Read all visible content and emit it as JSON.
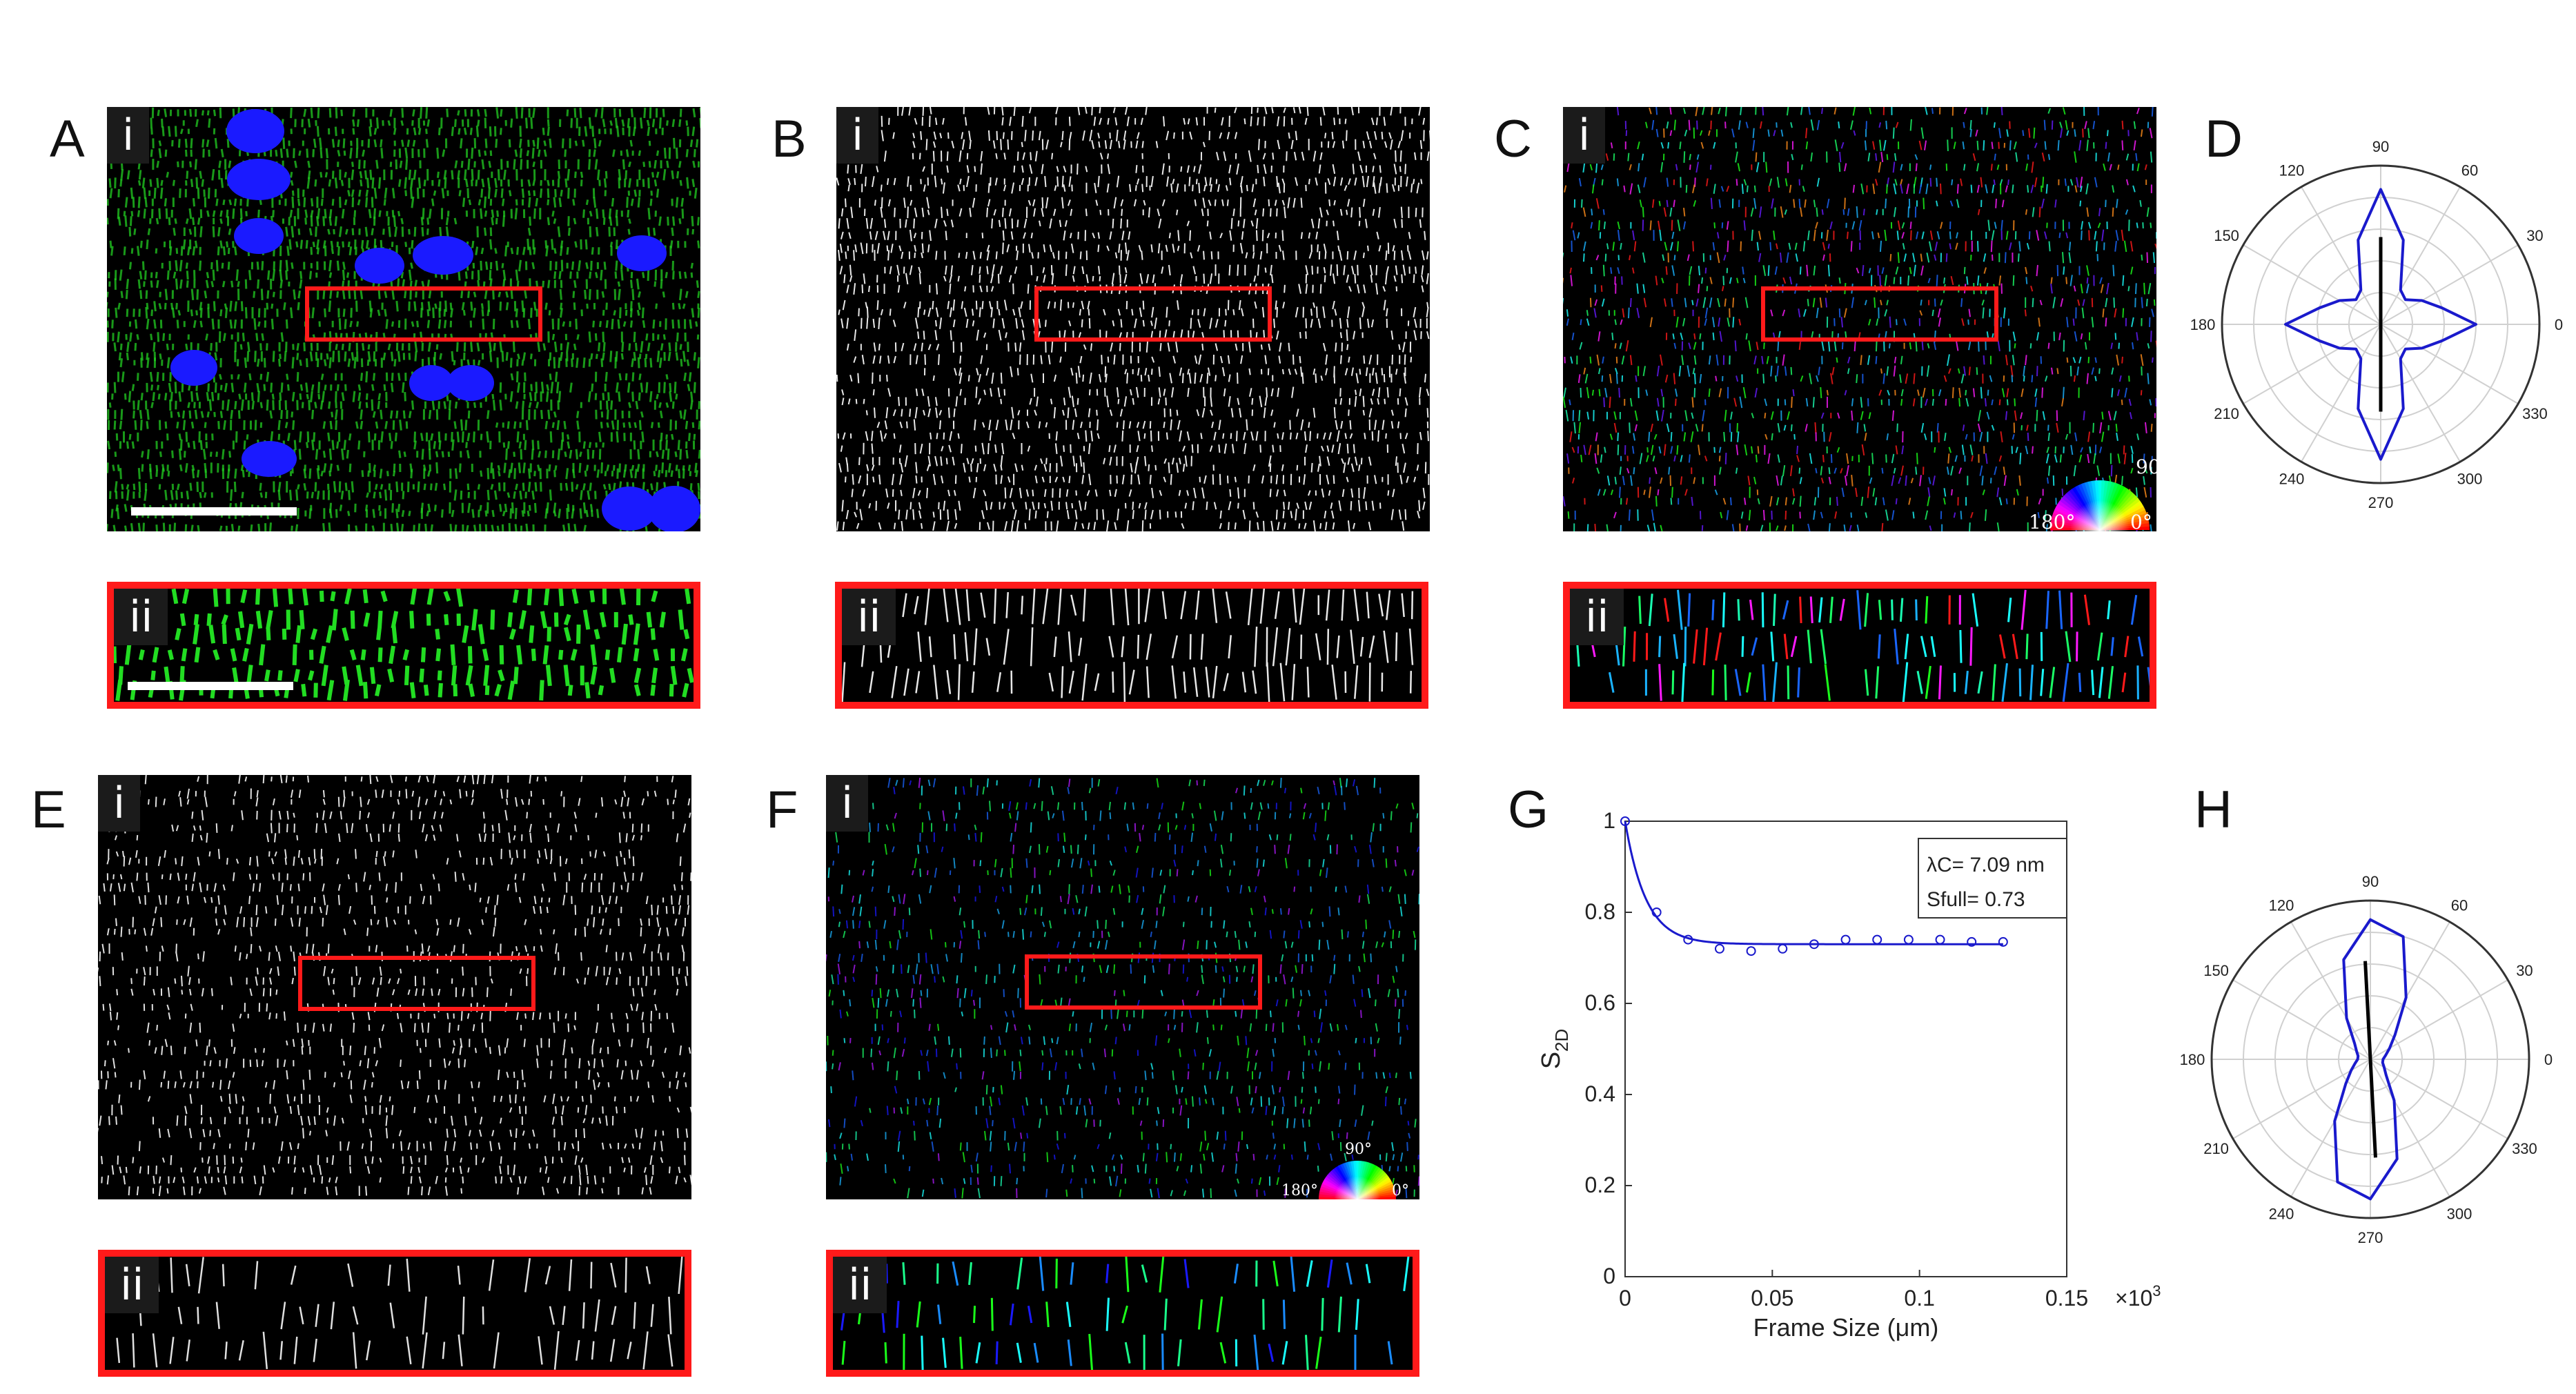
{
  "panels": {
    "A": {
      "label": "A",
      "sub_i": "i",
      "sub_ii": "ii"
    },
    "B": {
      "label": "B",
      "sub_i": "i",
      "sub_ii": "ii"
    },
    "C": {
      "label": "C",
      "sub_i": "i",
      "sub_ii": "ii"
    },
    "D": {
      "label": "D"
    },
    "E": {
      "label": "E",
      "sub_i": "i",
      "sub_ii": "ii"
    },
    "F": {
      "label": "F",
      "sub_i": "i",
      "sub_ii": "ii"
    },
    "G": {
      "label": "G"
    },
    "H": {
      "label": "H"
    }
  },
  "color_wheel": {
    "top": "90°",
    "left": "180°",
    "right": "0°"
  },
  "polar_angles": [
    "0",
    "30",
    "60",
    "90",
    "120",
    "150",
    "180",
    "210",
    "240",
    "270",
    "300",
    "330"
  ],
  "colors": {
    "nuclei": "#1a1aff",
    "actinin": "#22cc22",
    "box": "#ff1a1a",
    "curve": "#1a1acc"
  },
  "chart_data": [
    {
      "type": "line",
      "panel": "G",
      "xlabel": "Frame Size (μm)",
      "ylabel": "S2D",
      "xlim": [
        0,
        0.15
      ],
      "ylim": [
        0,
        1
      ],
      "x_ticks": [
        "0",
        "0.05",
        "0.1",
        "0.15"
      ],
      "y_ticks": [
        "0",
        "0.2",
        "0.4",
        "0.6",
        "0.8",
        "1"
      ],
      "x_exponent": "×10^3",
      "annotation": {
        "lambda": "λC= 7.09 nm",
        "s_full": "Sfull= 0.73"
      },
      "series": [
        {
          "kind": "points",
          "x": [
            0,
            0.0107,
            0.0214,
            0.0321,
            0.0428,
            0.0535,
            0.0642,
            0.0749,
            0.0856,
            0.0963,
            0.107,
            0.1177,
            0.1284
          ],
          "y": [
            1.0,
            0.8,
            0.74,
            0.72,
            0.715,
            0.72,
            0.73,
            0.74,
            0.74,
            0.74,
            0.74,
            0.735,
            0.735
          ]
        },
        {
          "kind": "fit",
          "model": "exponential",
          "s_full": 0.73,
          "lambda": 0.00709
        }
      ]
    },
    {
      "type": "polar",
      "panel": "D",
      "radial_ticks": 5,
      "directions_deg": [
        0,
        15,
        30,
        45,
        60,
        75,
        90,
        105,
        120,
        135,
        150,
        165,
        180,
        195,
        210,
        225,
        240,
        255,
        270,
        285,
        300,
        315,
        330,
        345
      ],
      "r": [
        0.6,
        0.4,
        0.3,
        0.22,
        0.25,
        0.55,
        0.85,
        0.55,
        0.25,
        0.22,
        0.3,
        0.4,
        0.6,
        0.4,
        0.3,
        0.22,
        0.25,
        0.55,
        0.85,
        0.55,
        0.25,
        0.22,
        0.3,
        0.4
      ],
      "director_deg": 90,
      "director_length": 0.55
    },
    {
      "type": "polar",
      "panel": "H",
      "radial_ticks": 5,
      "directions_deg": [
        0,
        15,
        30,
        45,
        60,
        75,
        90,
        105,
        120,
        135,
        150,
        165,
        180,
        195,
        210,
        225,
        240,
        255,
        270,
        285,
        300,
        315,
        330,
        345
      ],
      "r": [
        0.08,
        0.1,
        0.14,
        0.22,
        0.45,
        0.8,
        0.88,
        0.65,
        0.3,
        0.14,
        0.1,
        0.08,
        0.08,
        0.1,
        0.14,
        0.22,
        0.45,
        0.8,
        0.88,
        0.65,
        0.3,
        0.14,
        0.1,
        0.08
      ],
      "director_deg": 93,
      "director_length": 0.62
    }
  ]
}
